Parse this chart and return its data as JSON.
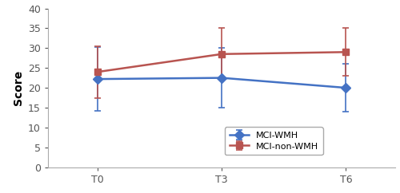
{
  "x_labels": [
    "T0",
    "T3",
    "T6"
  ],
  "x_positions": [
    0,
    1,
    2
  ],
  "blue_y": [
    22.2,
    22.5,
    20.0
  ],
  "blue_yerr": [
    8.0,
    7.5,
    6.0
  ],
  "red_y": [
    24.0,
    28.5,
    29.0
  ],
  "red_yerr": [
    6.5,
    6.5,
    6.0
  ],
  "blue_color": "#4472C4",
  "red_color": "#B85450",
  "blue_label": "MCI-WMH",
  "red_label": "MCI-non-WMH",
  "ylabel": "Score",
  "ylim": [
    0,
    40
  ],
  "yticks": [
    0,
    5,
    10,
    15,
    20,
    25,
    30,
    35,
    40
  ],
  "background_color": "#FFFFFF",
  "linewidth": 1.8,
  "markersize": 6,
  "capsize": 3,
  "elinewidth": 1.2
}
